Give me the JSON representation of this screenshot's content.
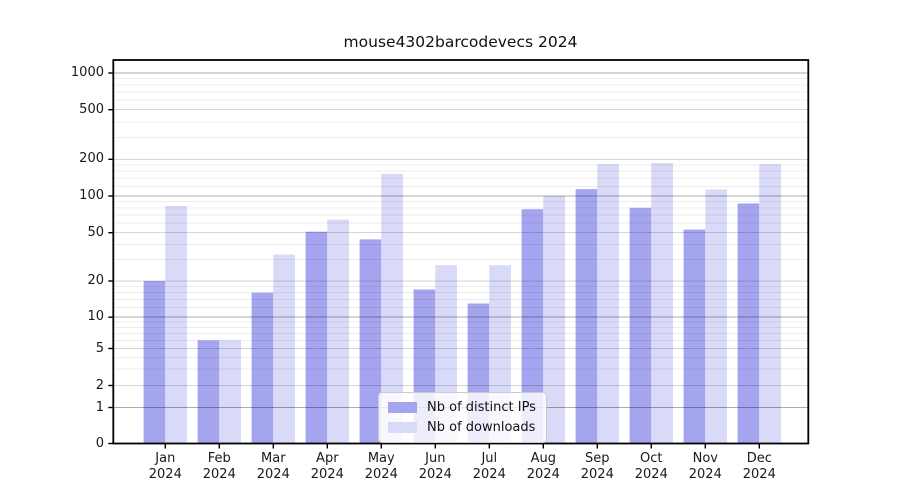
{
  "chart_data": {
    "type": "bar",
    "title": "mouse4302barcodevecs 2024",
    "categories": [
      "Jan",
      "Feb",
      "Mar",
      "Apr",
      "May",
      "Jun",
      "Jul",
      "Aug",
      "Sep",
      "Oct",
      "Nov",
      "Dec"
    ],
    "year": "2024",
    "series": [
      {
        "name": "Nb of distinct IPs",
        "color": "#a5a5ef",
        "values": [
          20,
          6,
          16,
          51,
          44,
          17,
          13,
          78,
          114,
          80,
          53,
          87
        ]
      },
      {
        "name": "Nb of downloads",
        "color": "#d9d9f8",
        "values": [
          83,
          6,
          33,
          64,
          152,
          27,
          27,
          100,
          183,
          186,
          113,
          183
        ]
      }
    ],
    "yscale": "symlog",
    "ylim": [
      0,
      1300
    ],
    "yticks": [
      0,
      1,
      2,
      5,
      10,
      20,
      50,
      100,
      200,
      500,
      1000
    ],
    "minor_gridlines": [
      3,
      4,
      6,
      7,
      8,
      9,
      12,
      14,
      16,
      18,
      30,
      40,
      60,
      70,
      80,
      90,
      120,
      140,
      160,
      180,
      300,
      400,
      600,
      700,
      800,
      900
    ],
    "grid": "horizontal, drawn over bars",
    "legend_position": "lower center"
  },
  "colors": {
    "background": "#ffffff",
    "axis": "#000000",
    "text": "#1a1a1a",
    "grid_major": "rgba(0,0,0,0.33)",
    "grid_labeled": "rgba(0,0,0,0.16)",
    "grid_minor": "rgba(0,0,0,0.07)",
    "legend_border": "#cbcbcb",
    "legend_bg": "rgba(255,255,255,0.8)"
  }
}
